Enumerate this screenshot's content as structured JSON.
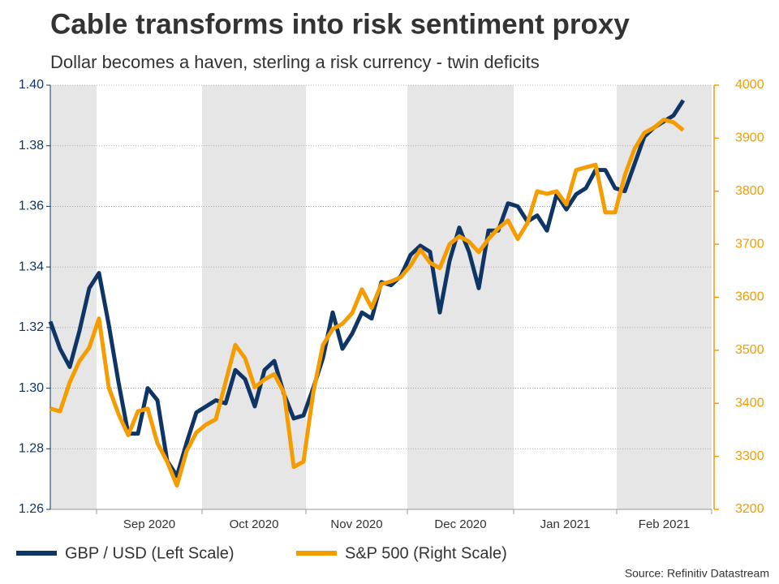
{
  "chart_data": {
    "type": "line",
    "title": "Cable transforms into risk sentiment proxy",
    "subtitle": "Dollar becomes a haven, sterling a risk currency - twin deficits",
    "source": "Source: Refinitiv Datastream",
    "x_labels": [
      "Sep 2020",
      "Oct 2020",
      "Nov 2020",
      "Dec 2020",
      "Jan 2021",
      "Feb 2021"
    ],
    "ylim": [
      1.26,
      1.4
    ],
    "yticks": [
      1.26,
      1.28,
      {
        "value": 1.3,
        "label": "1.30"
      },
      1.32,
      1.34,
      1.36,
      1.38,
      {
        "value": 1.4,
        "label": "1.40"
      }
    ],
    "y2lim": [
      3200,
      4000
    ],
    "y2ticks": [
      3200,
      3300,
      3400,
      3500,
      3600,
      3700,
      3800,
      3900,
      4000
    ],
    "grid": true,
    "series": [
      {
        "name": "GBP / USD (Left Scale)",
        "color": "#0e3566",
        "values": [
          1.322,
          1.313,
          1.307,
          1.319,
          1.333,
          1.338,
          1.321,
          1.302,
          1.285,
          1.285,
          1.3,
          1.296,
          1.276,
          1.271,
          1.282,
          1.292,
          1.294,
          1.296,
          1.295,
          1.306,
          1.303,
          1.294,
          1.306,
          1.309,
          1.298,
          1.29,
          1.291,
          1.3,
          1.31,
          1.325,
          1.313,
          1.318,
          1.325,
          1.323,
          1.335,
          1.334,
          1.337,
          1.344,
          1.347,
          1.345,
          1.325,
          1.342,
          1.353,
          1.345,
          1.333,
          1.352,
          1.352,
          1.361,
          1.36,
          1.355,
          1.357,
          1.352,
          1.364,
          1.359,
          1.364,
          1.366,
          1.372,
          1.372,
          1.366,
          1.365,
          1.374,
          1.383,
          1.386,
          1.388,
          1.39,
          1.395
        ]
      },
      {
        "name": "S&P 500 (Right Scale)",
        "color": "#f59c00",
        "axis": "y2",
        "values": [
          3390,
          3385,
          3440,
          3480,
          3505,
          3560,
          3430,
          3380,
          3340,
          3385,
          3390,
          3325,
          3290,
          3245,
          3310,
          3345,
          3360,
          3370,
          3440,
          3510,
          3485,
          3430,
          3445,
          3455,
          3420,
          3280,
          3290,
          3420,
          3510,
          3540,
          3550,
          3570,
          3615,
          3580,
          3625,
          3630,
          3638,
          3660,
          3690,
          3665,
          3655,
          3700,
          3715,
          3705,
          3685,
          3710,
          3730,
          3745,
          3710,
          3740,
          3800,
          3795,
          3800,
          3775,
          3840,
          3845,
          3850,
          3760,
          3760,
          3830,
          3880,
          3910,
          3920,
          3935,
          3930,
          3915
        ]
      }
    ]
  }
}
